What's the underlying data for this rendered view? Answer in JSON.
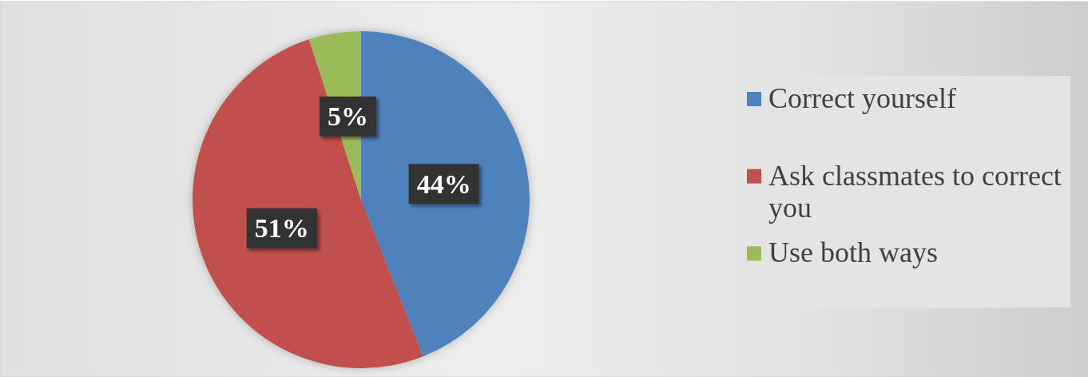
{
  "chart_data": {
    "type": "pie",
    "categories": [
      "Correct yourself",
      "Ask classmates to correct you",
      "Use both ways"
    ],
    "values": [
      44,
      51,
      5
    ],
    "colors": [
      "#4f81bd",
      "#c0504d",
      "#9bbb59"
    ],
    "value_labels": [
      "44%",
      "51%",
      "5%"
    ],
    "legend": "right"
  }
}
